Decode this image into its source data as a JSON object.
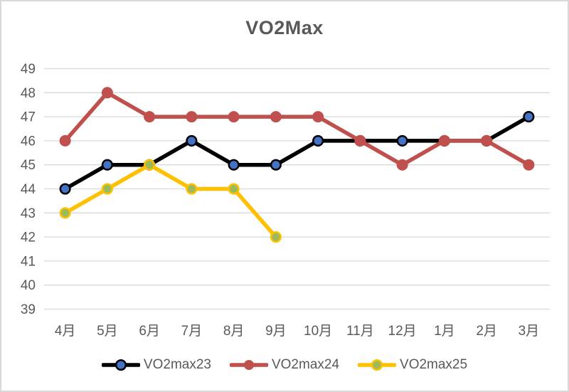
{
  "chart_data": {
    "type": "line",
    "title": "VO2Max",
    "xlabel": "",
    "ylabel": "",
    "categories": [
      "4月",
      "5月",
      "6月",
      "7月",
      "8月",
      "9月",
      "10月",
      "11月",
      "12月",
      "1月",
      "2月",
      "3月"
    ],
    "series": [
      {
        "name": "VO2max23",
        "values": [
          44,
          45,
          45,
          46,
          45,
          45,
          46,
          46,
          46,
          46,
          46,
          47
        ],
        "line_color": "#000000",
        "marker_fill": "#4472C4",
        "marker_stroke": "#000000",
        "marker_r": 6.8,
        "marker_stroke_width": 2.5
      },
      {
        "name": "VO2max24",
        "values": [
          46,
          48,
          47,
          47,
          47,
          47,
          47,
          46,
          45,
          46,
          46,
          45
        ],
        "line_color": "#C0504D",
        "marker_fill": "#C0504D",
        "marker_stroke": "#C0504D",
        "marker_r": 8,
        "marker_stroke_width": 0
      },
      {
        "name": "VO2max25",
        "values": [
          43,
          44,
          45,
          44,
          44,
          42,
          null,
          null,
          null,
          null,
          null,
          null
        ],
        "line_color": "#FFC000",
        "marker_fill": "#9BBB59",
        "marker_stroke": "#FFC000",
        "marker_r": 6.8,
        "marker_stroke_width": 2.5
      }
    ],
    "ylim": [
      39,
      49
    ],
    "ytick_step": 1,
    "grid": true,
    "legend_position": "bottom",
    "title_color": "#595959",
    "text_color": "#595959",
    "grid_color": "#D9D9D9",
    "border_color": "#D9D9D9",
    "background_color": "#ffffff"
  }
}
